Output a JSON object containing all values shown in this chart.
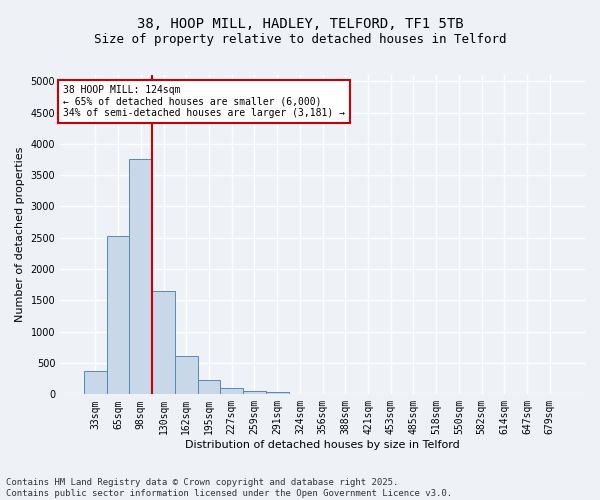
{
  "title_line1": "38, HOOP MILL, HADLEY, TELFORD, TF1 5TB",
  "title_line2": "Size of property relative to detached houses in Telford",
  "xlabel": "Distribution of detached houses by size in Telford",
  "ylabel": "Number of detached properties",
  "bar_color": "#c8d8e8",
  "bar_edge_color": "#5588bb",
  "annotation_line1": "38 HOOP MILL: 124sqm",
  "annotation_line2": "← 65% of detached houses are smaller (6,000)",
  "annotation_line3": "34% of semi-detached houses are larger (3,181) →",
  "annotation_box_color": "#ffffff",
  "annotation_box_edge_color": "#cc0000",
  "vline_color": "#cc0000",
  "categories": [
    "33sqm",
    "65sqm",
    "98sqm",
    "130sqm",
    "162sqm",
    "195sqm",
    "227sqm",
    "259sqm",
    "291sqm",
    "324sqm",
    "356sqm",
    "388sqm",
    "421sqm",
    "453sqm",
    "485sqm",
    "518sqm",
    "550sqm",
    "582sqm",
    "614sqm",
    "647sqm",
    "679sqm"
  ],
  "values": [
    380,
    2530,
    3760,
    1650,
    620,
    230,
    100,
    60,
    35,
    0,
    0,
    0,
    0,
    0,
    0,
    0,
    0,
    0,
    0,
    0,
    0
  ],
  "ylim": [
    0,
    5100
  ],
  "yticks": [
    0,
    500,
    1000,
    1500,
    2000,
    2500,
    3000,
    3500,
    4000,
    4500,
    5000
  ],
  "background_color": "#eef2f7",
  "grid_color": "#ffffff",
  "footer_line1": "Contains HM Land Registry data © Crown copyright and database right 2025.",
  "footer_line2": "Contains public sector information licensed under the Open Government Licence v3.0.",
  "title_fontsize": 10,
  "subtitle_fontsize": 9,
  "label_fontsize": 8,
  "tick_fontsize": 7,
  "annotation_fontsize": 7,
  "footer_fontsize": 6.5
}
